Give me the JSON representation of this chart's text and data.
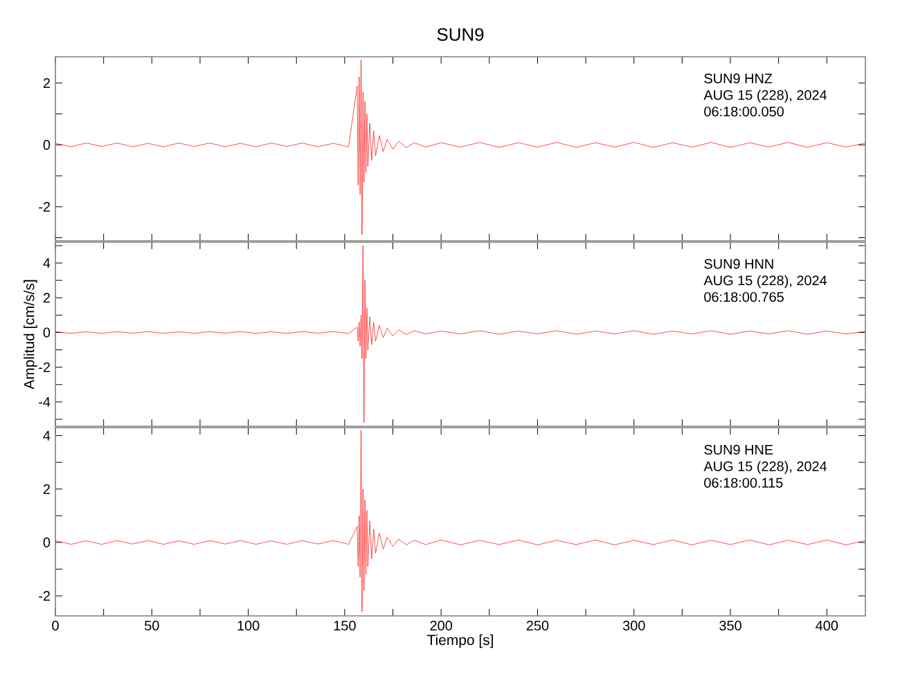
{
  "chart_data": [
    {
      "type": "line",
      "title": "SUN9",
      "x": [
        0,
        8,
        16,
        24,
        32,
        40,
        48,
        56,
        64,
        72,
        80,
        88,
        96,
        104,
        112,
        120,
        128,
        136,
        144,
        152,
        156.5,
        157,
        157.5,
        158,
        158.5,
        159,
        159.5,
        160,
        160.5,
        161,
        161.5,
        162,
        163,
        164,
        165,
        166,
        168,
        170,
        172,
        175,
        178,
        182,
        186,
        192,
        200,
        210,
        220,
        230,
        240,
        250,
        260,
        270,
        280,
        290,
        300,
        310,
        320,
        330,
        340,
        350,
        360,
        370,
        380,
        390,
        400,
        410,
        420
      ],
      "series": [
        {
          "color": "#ff0000",
          "values": [
            0.05,
            -0.06,
            0.06,
            -0.05,
            0.06,
            -0.06,
            0.05,
            -0.06,
            0.06,
            -0.05,
            0.06,
            -0.06,
            0.05,
            -0.06,
            0.06,
            -0.05,
            0.06,
            -0.06,
            0.05,
            -0.06,
            1.9,
            -1.3,
            2.2,
            -1.6,
            2.75,
            -2.9,
            1.7,
            -1.2,
            1.4,
            -0.9,
            1.0,
            -0.7,
            0.7,
            -0.5,
            0.45,
            -0.35,
            0.3,
            -0.22,
            0.18,
            -0.14,
            0.12,
            -0.09,
            0.07,
            -0.07,
            0.07,
            -0.07,
            0.08,
            -0.08,
            0.07,
            -0.07,
            0.08,
            -0.08,
            0.07,
            -0.07,
            0.08,
            -0.08,
            0.07,
            -0.07,
            0.08,
            -0.08,
            0.07,
            -0.07,
            0.08,
            -0.08,
            0.07,
            -0.07,
            0.06
          ]
        }
      ],
      "xlim": [
        0,
        420
      ],
      "ylim": [
        -3.1,
        2.85
      ],
      "xticks": [
        0,
        {
          "value": 25,
          "label": null
        },
        50,
        {
          "value": 75,
          "label": null
        },
        100,
        {
          "value": 125,
          "label": null
        },
        150,
        {
          "value": 175,
          "label": null
        },
        200,
        {
          "value": 225,
          "label": null
        },
        250,
        {
          "value": 275,
          "label": null
        },
        300,
        {
          "value": 325,
          "label": null
        },
        350,
        {
          "value": 375,
          "label": null
        },
        400
      ],
      "yticks": [
        {
          "value": -3,
          "label": null
        },
        -2,
        {
          "value": -1,
          "label": null
        },
        0,
        {
          "value": 1,
          "label": null
        },
        2
      ],
      "tick_labels": "y",
      "annotations": [
        "SUN9   HNZ",
        "AUG 15 (228), 2024",
        "06:18:00.050"
      ]
    },
    {
      "type": "line",
      "ylabel": "Amplitud [cm/s/s]",
      "x": [
        0,
        8,
        16,
        24,
        32,
        40,
        48,
        56,
        64,
        72,
        80,
        88,
        96,
        104,
        112,
        120,
        128,
        136,
        144,
        152,
        156.5,
        157,
        157.5,
        158,
        158.5,
        159,
        159.5,
        160,
        160.5,
        161,
        161.5,
        162,
        163,
        164,
        165,
        166,
        168,
        170,
        172,
        175,
        178,
        182,
        186,
        192,
        200,
        210,
        220,
        230,
        240,
        250,
        260,
        270,
        280,
        290,
        300,
        310,
        320,
        330,
        340,
        350,
        360,
        370,
        380,
        390,
        400,
        410,
        420
      ],
      "series": [
        {
          "color": "#ff0000",
          "values": [
            0.05,
            -0.05,
            0.04,
            -0.05,
            0.05,
            -0.04,
            0.05,
            -0.05,
            0.04,
            -0.05,
            0.05,
            -0.04,
            0.05,
            -0.05,
            0.04,
            -0.05,
            0.05,
            -0.04,
            0.05,
            -0.05,
            0.3,
            -0.5,
            0.6,
            -0.8,
            1.0,
            -1.5,
            5.0,
            -5.2,
            3.0,
            -1.5,
            1.4,
            -1.0,
            0.9,
            -0.7,
            0.6,
            -0.5,
            0.4,
            -0.3,
            0.25,
            -0.2,
            0.15,
            -0.12,
            0.1,
            -0.08,
            0.08,
            -0.08,
            0.1,
            -0.1,
            0.08,
            -0.08,
            0.1,
            -0.1,
            0.08,
            -0.08,
            0.1,
            -0.1,
            0.08,
            -0.08,
            0.1,
            -0.1,
            0.08,
            -0.08,
            0.1,
            -0.1,
            0.08,
            -0.08,
            0.06
          ]
        }
      ],
      "xlim": [
        0,
        420
      ],
      "ylim": [
        -5.4,
        5.2
      ],
      "xticks": [
        0,
        {
          "value": 25,
          "label": null
        },
        50,
        {
          "value": 75,
          "label": null
        },
        100,
        {
          "value": 125,
          "label": null
        },
        150,
        {
          "value": 175,
          "label": null
        },
        200,
        {
          "value": 225,
          "label": null
        },
        250,
        {
          "value": 275,
          "label": null
        },
        300,
        {
          "value": 325,
          "label": null
        },
        350,
        {
          "value": 375,
          "label": null
        },
        400
      ],
      "yticks": [
        {
          "value": -5,
          "label": null
        },
        -4,
        {
          "value": -3,
          "label": null
        },
        -2,
        {
          "value": -1,
          "label": null
        },
        0,
        {
          "value": 1,
          "label": null
        },
        2,
        {
          "value": 3,
          "label": null
        },
        4,
        {
          "value": 5,
          "label": null
        }
      ],
      "tick_labels": "y",
      "annotations": [
        "SUN9   HNN",
        "AUG 15 (228), 2024",
        "06:18:00.765"
      ]
    },
    {
      "type": "line",
      "xlabel": "Tiempo [s]",
      "x": [
        0,
        8,
        16,
        24,
        32,
        40,
        48,
        56,
        64,
        72,
        80,
        88,
        96,
        104,
        112,
        120,
        128,
        136,
        144,
        152,
        156.5,
        157,
        157.5,
        158,
        158.5,
        159,
        159.5,
        160,
        160.5,
        161,
        161.5,
        162,
        163,
        164,
        165,
        166,
        168,
        170,
        172,
        175,
        178,
        182,
        186,
        192,
        200,
        210,
        220,
        230,
        240,
        250,
        260,
        270,
        280,
        290,
        300,
        310,
        320,
        330,
        340,
        350,
        360,
        370,
        380,
        390,
        400,
        410,
        420
      ],
      "series": [
        {
          "color": "#ff0000",
          "values": [
            0.07,
            -0.07,
            0.06,
            -0.07,
            0.07,
            -0.06,
            0.07,
            -0.07,
            0.06,
            -0.07,
            0.07,
            -0.06,
            0.07,
            -0.07,
            0.06,
            -0.07,
            0.07,
            -0.06,
            0.07,
            -0.07,
            0.6,
            -0.9,
            1.0,
            -1.3,
            4.2,
            -2.6,
            2.0,
            -1.8,
            1.6,
            -1.2,
            1.2,
            -0.9,
            0.8,
            -0.6,
            0.5,
            -0.4,
            0.35,
            -0.25,
            0.2,
            -0.15,
            0.12,
            -0.09,
            0.08,
            -0.08,
            0.09,
            -0.09,
            0.08,
            -0.08,
            0.09,
            -0.09,
            0.08,
            -0.08,
            0.09,
            -0.09,
            0.08,
            -0.08,
            0.09,
            -0.09,
            0.08,
            -0.08,
            0.09,
            -0.09,
            0.08,
            -0.08,
            0.09,
            -0.09,
            0.07
          ]
        }
      ],
      "xlim": [
        0,
        420
      ],
      "ylim": [
        -2.75,
        4.3
      ],
      "xticks": [
        0,
        {
          "value": 25,
          "label": null
        },
        50,
        {
          "value": 75,
          "label": null
        },
        100,
        {
          "value": 125,
          "label": null
        },
        150,
        {
          "value": 175,
          "label": null
        },
        200,
        {
          "value": 225,
          "label": null
        },
        250,
        {
          "value": 275,
          "label": null
        },
        300,
        {
          "value": 325,
          "label": null
        },
        350,
        {
          "value": 375,
          "label": null
        },
        400
      ],
      "yticks": [
        -2,
        {
          "value": -1,
          "label": null
        },
        0,
        {
          "value": 1,
          "label": null
        },
        2,
        {
          "value": 3,
          "label": null
        },
        4
      ],
      "annotations": [
        "SUN9   HNE",
        "AUG 15 (228), 2024",
        "06:18:00.115"
      ]
    }
  ]
}
